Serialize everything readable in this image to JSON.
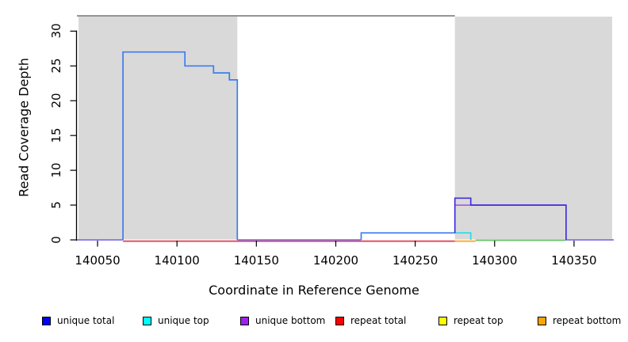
{
  "chart_data": {
    "type": "line",
    "subtype": "step-coverage-plot",
    "title": "",
    "xlabel": "Coordinate in Reference Genome",
    "ylabel": "Read Coverage Depth",
    "x_domain": [
      140037,
      140375
    ],
    "y_domain": [
      0,
      32.2
    ],
    "x_ticks": [
      140050,
      140100,
      140150,
      140200,
      140250,
      140300,
      140350
    ],
    "y_ticks": [
      0,
      5,
      10,
      15,
      20,
      25,
      30
    ],
    "grid": "off",
    "legend_position": "bottom",
    "shaded_regions": [
      {
        "name": "left-gray-block",
        "x": [
          140038,
          140138
        ],
        "color": "#D9D9D9"
      },
      {
        "name": "right-gray-block",
        "x": [
          140275,
          140374
        ],
        "color": "#D9D9D9"
      }
    ],
    "frame": {
      "top_line_x": [
        140037,
        140275
      ],
      "top_line_color": "#848484",
      "axis_color": "#000000"
    },
    "series": [
      {
        "name": "unique total",
        "color": "#0000FF",
        "steps": [
          [
            140037,
            0
          ],
          [
            140066,
            27
          ],
          [
            140105,
            25
          ],
          [
            140123,
            24
          ],
          [
            140133,
            23
          ],
          [
            140138,
            0
          ],
          [
            140216,
            1
          ],
          [
            140275,
            6
          ],
          [
            140285,
            5
          ],
          [
            140345,
            0
          ],
          [
            140375,
            0
          ]
        ]
      },
      {
        "name": "unique top",
        "color": "#00FFFF",
        "steps": [
          [
            140037,
            0
          ],
          [
            140066,
            27
          ],
          [
            140105,
            25
          ],
          [
            140123,
            24
          ],
          [
            140133,
            23
          ],
          [
            140138,
            0
          ],
          [
            140216,
            1
          ],
          [
            140285,
            0
          ],
          [
            140375,
            0
          ]
        ]
      },
      {
        "name": "unique bottom",
        "color": "#A020F0",
        "steps": [
          [
            140037,
            0
          ],
          [
            140275,
            5
          ],
          [
            140345,
            0
          ],
          [
            140375,
            0
          ]
        ]
      },
      {
        "name": "repeat total",
        "color": "#FF0000",
        "steps": [
          [
            140037,
            0
          ],
          [
            140375,
            0
          ]
        ]
      },
      {
        "name": "repeat top",
        "color": "#FFFF00",
        "steps": [
          [
            140037,
            0
          ],
          [
            140375,
            0
          ]
        ]
      },
      {
        "name": "repeat bottom",
        "color": "#FFA500",
        "steps": [
          [
            140037,
            0
          ],
          [
            140375,
            0
          ]
        ]
      }
    ],
    "rendered_segments": [
      {
        "name": "baseline-violet-left",
        "color": "#8273E9",
        "dy": 0,
        "pts": [
          [
            140037,
            0
          ],
          [
            140066,
            0
          ]
        ]
      },
      {
        "name": "baseline-red",
        "color": "#E03A50",
        "dy": 1.6,
        "pts": [
          [
            140066,
            0
          ],
          [
            140275,
            0
          ]
        ]
      },
      {
        "name": "baseline-violet-mid",
        "color": "#8273E9",
        "dy": 0,
        "pts": [
          [
            140138,
            0
          ],
          [
            140216,
            0
          ]
        ]
      },
      {
        "name": "baseline-orange",
        "color": "#FFA01E",
        "dy": 1.6,
        "pts": [
          [
            140275,
            0
          ],
          [
            140288,
            0
          ]
        ]
      },
      {
        "name": "baseline-green",
        "color": "#69C469",
        "dy": 0.5,
        "pts": [
          [
            140288,
            0
          ],
          [
            140345,
            0
          ]
        ]
      },
      {
        "name": "baseline-violet-right",
        "color": "#8273E9",
        "dy": 0,
        "pts": [
          [
            140345,
            0
          ],
          [
            140375,
            0
          ]
        ]
      },
      {
        "name": "unique-bottom-plateau",
        "color": "#AC5FE0",
        "dy": 0,
        "pts": [
          [
            140275,
            5
          ],
          [
            140345,
            5
          ]
        ]
      },
      {
        "name": "unique-top-step",
        "color": "#21DDE6",
        "dy": 0,
        "pts": [
          [
            140275,
            1
          ],
          [
            140285,
            1
          ],
          [
            140285,
            0
          ]
        ]
      },
      {
        "name": "unique-total-hump",
        "color": "#3D7CF1",
        "dy": 0,
        "pts": [
          [
            140066,
            0
          ],
          [
            140066,
            27
          ],
          [
            140105,
            27
          ],
          [
            140105,
            25
          ],
          [
            140123,
            25
          ],
          [
            140123,
            24
          ],
          [
            140133,
            24
          ],
          [
            140133,
            23
          ],
          [
            140138,
            23
          ],
          [
            140138,
            0
          ]
        ]
      },
      {
        "name": "unique-total-depth1",
        "color": "#3D7CF1",
        "dy": 0,
        "pts": [
          [
            140216,
            0
          ],
          [
            140216,
            1
          ],
          [
            140275,
            1
          ]
        ]
      },
      {
        "name": "unique-total-right",
        "color": "#4330E0",
        "dy": 0,
        "pts": [
          [
            140275,
            1
          ],
          [
            140275,
            6
          ],
          [
            140285,
            6
          ],
          [
            140285,
            5
          ],
          [
            140345,
            5
          ],
          [
            140345,
            0
          ]
        ]
      }
    ]
  },
  "legend": {
    "items": [
      {
        "label": "unique total",
        "color": "#0000FF"
      },
      {
        "label": "unique top",
        "color": "#00FFFF"
      },
      {
        "label": "unique bottom",
        "color": "#A020F0"
      },
      {
        "label": "repeat total",
        "color": "#FF0000"
      },
      {
        "label": "repeat top",
        "color": "#FFFF00"
      },
      {
        "label": "repeat bottom",
        "color": "#FFA500"
      }
    ]
  }
}
